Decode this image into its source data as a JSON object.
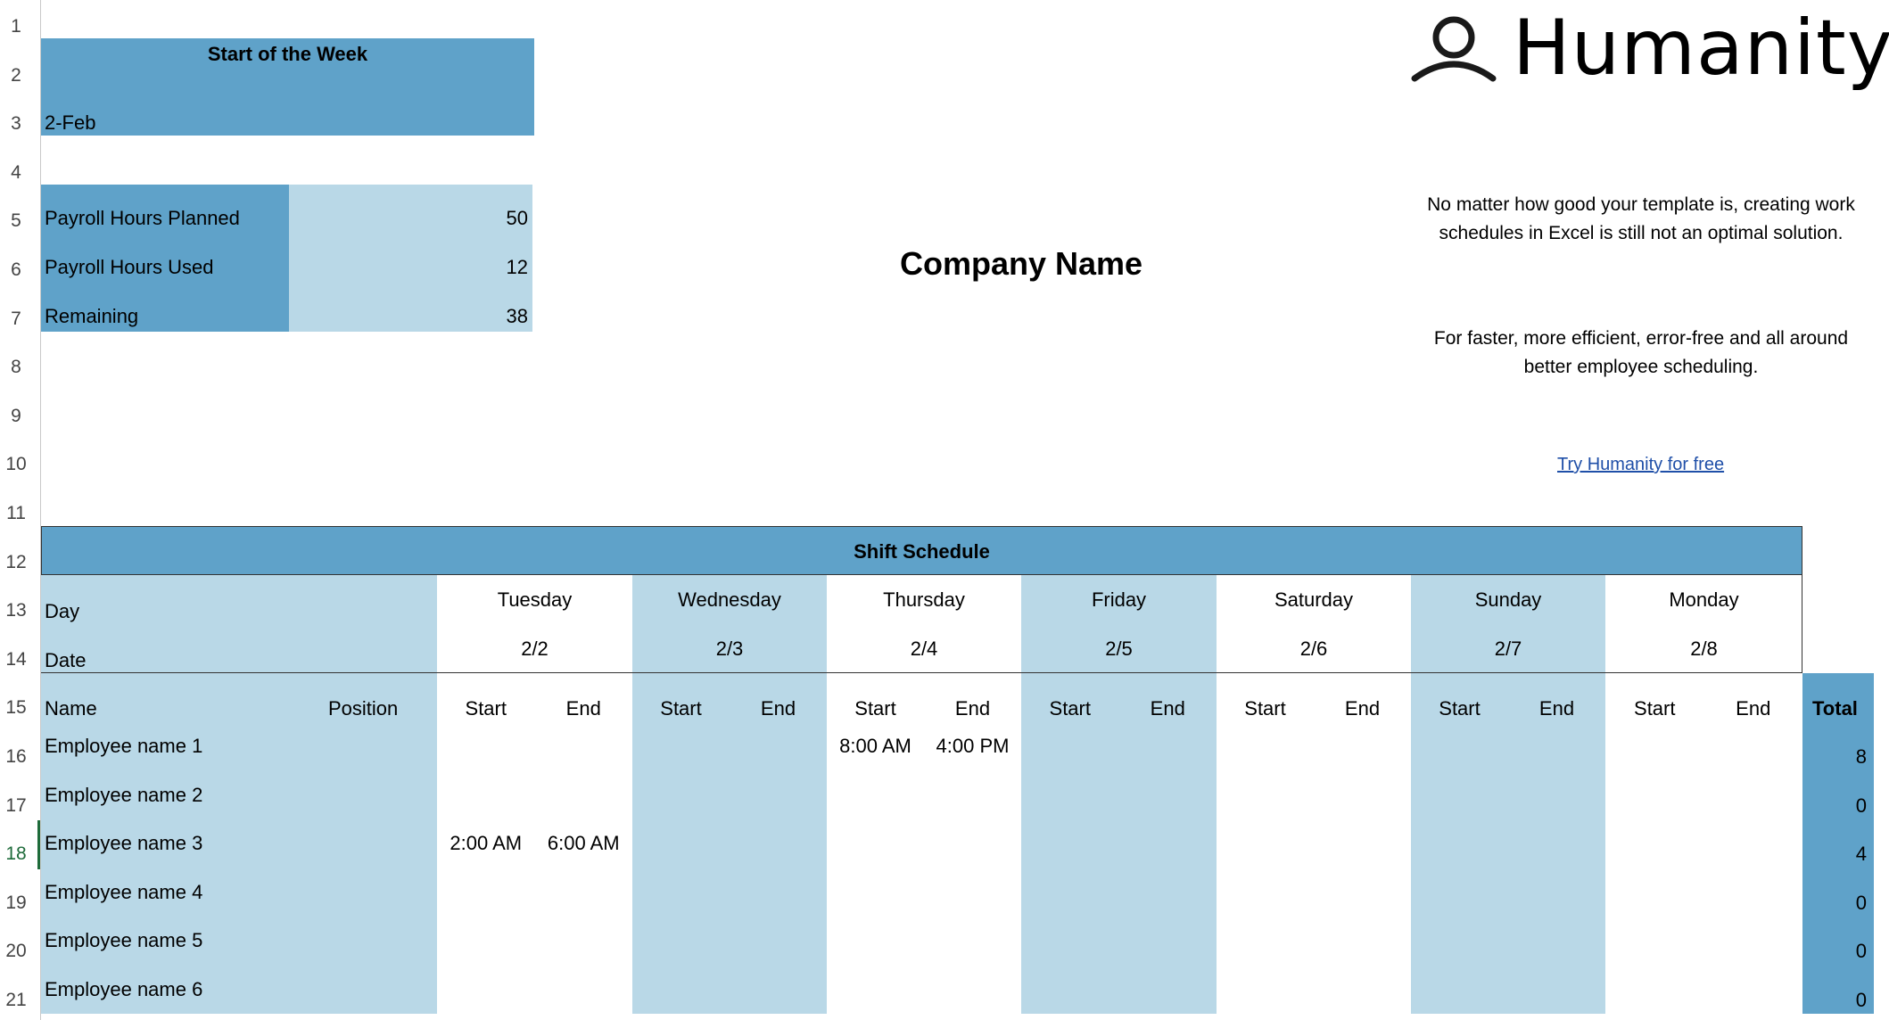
{
  "row_numbers": [
    "1",
    "2",
    "3",
    "4",
    "5",
    "6",
    "7",
    "8",
    "9",
    "10",
    "11",
    "12",
    "13",
    "14",
    "15",
    "16",
    "17",
    "18",
    "19",
    "20",
    "21"
  ],
  "active_row": "18",
  "week": {
    "header": "Start of the Week",
    "date": "2-Feb"
  },
  "payroll": [
    {
      "label": "Payroll Hours Planned",
      "value": "50"
    },
    {
      "label": "Payroll Hours Used",
      "value": "12"
    },
    {
      "label": "Remaining",
      "value": "38"
    }
  ],
  "company_name": "Company Name",
  "logo": {
    "text": "Humanity",
    "icon": "person-outline-icon"
  },
  "info": {
    "paragraph1": "No matter how good your template is, creating work schedules in Excel is still not an optimal solution.",
    "paragraph2": "For faster, more efficient, error-free and all around better employee scheduling.",
    "link": "Try Humanity for free"
  },
  "schedule": {
    "title": "Shift Schedule",
    "day_label": "Day",
    "date_label": "Date",
    "name_label": "Name",
    "position_label": "Position",
    "start_label": "Start",
    "end_label": "End",
    "total_label": "Total",
    "days": [
      {
        "day": "Tuesday",
        "date": "2/2"
      },
      {
        "day": "Wednesday",
        "date": "2/3"
      },
      {
        "day": "Thursday",
        "date": "2/4"
      },
      {
        "day": "Friday",
        "date": "2/5"
      },
      {
        "day": "Saturday",
        "date": "2/6"
      },
      {
        "day": "Sunday",
        "date": "2/7"
      },
      {
        "day": "Monday",
        "date": "2/8"
      }
    ],
    "employees": [
      {
        "name": "Employee name 1",
        "total": "8",
        "shifts": [
          [
            "",
            ""
          ],
          [
            "",
            ""
          ],
          [
            "8:00 AM",
            "4:00 PM"
          ],
          [
            "",
            ""
          ],
          [
            "",
            ""
          ],
          [
            "",
            ""
          ],
          [
            "",
            ""
          ]
        ]
      },
      {
        "name": "Employee name 2",
        "total": "0",
        "shifts": [
          [
            "",
            ""
          ],
          [
            "",
            ""
          ],
          [
            "",
            ""
          ],
          [
            "",
            ""
          ],
          [
            "",
            ""
          ],
          [
            "",
            ""
          ],
          [
            "",
            ""
          ]
        ]
      },
      {
        "name": "Employee name 3",
        "total": "4",
        "shifts": [
          [
            "2:00 AM",
            "6:00 AM"
          ],
          [
            "",
            ""
          ],
          [
            "",
            ""
          ],
          [
            "",
            ""
          ],
          [
            "",
            ""
          ],
          [
            "",
            ""
          ],
          [
            "",
            ""
          ]
        ]
      },
      {
        "name": "Employee name 4",
        "total": "0",
        "shifts": [
          [
            "",
            ""
          ],
          [
            "",
            ""
          ],
          [
            "",
            ""
          ],
          [
            "",
            ""
          ],
          [
            "",
            ""
          ],
          [
            "",
            ""
          ],
          [
            "",
            ""
          ]
        ]
      },
      {
        "name": "Employee name 5",
        "total": "0",
        "shifts": [
          [
            "",
            ""
          ],
          [
            "",
            ""
          ],
          [
            "",
            ""
          ],
          [
            "",
            ""
          ],
          [
            "",
            ""
          ],
          [
            "",
            ""
          ],
          [
            "",
            ""
          ]
        ]
      },
      {
        "name": "Employee name 6",
        "total": "0",
        "shifts": [
          [
            "",
            ""
          ],
          [
            "",
            ""
          ],
          [
            "",
            ""
          ],
          [
            "",
            ""
          ],
          [
            "",
            ""
          ],
          [
            "",
            ""
          ],
          [
            "",
            ""
          ]
        ]
      }
    ]
  },
  "colors": {
    "dark_blue": "#5fa2c9",
    "light_blue": "#b9d8e7",
    "link": "#1f4fa8",
    "active_row": "#1e6b3a"
  }
}
